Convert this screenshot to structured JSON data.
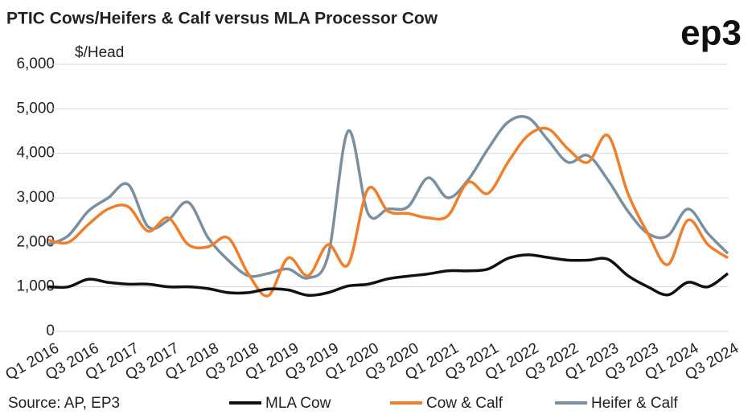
{
  "chart_data": {
    "type": "line",
    "title": "PTIC Cows/Heifers & Calf versus MLA Processor Cow",
    "brand": "ep3",
    "y_axis_label": "$/Head",
    "source": "Source: AP, EP3",
    "categories": [
      "Q1 2016",
      null,
      "Q3 2016",
      null,
      "Q1 2017",
      null,
      "Q3 2017",
      null,
      "Q1 2018",
      null,
      "Q3 2018",
      null,
      "Q1 2019",
      null,
      "Q3 2019",
      null,
      "Q1 2020",
      null,
      "Q3 2020",
      null,
      "Q1 2021",
      null,
      "Q3 2021",
      null,
      "Q1 2022",
      null,
      "Q3 2022",
      null,
      "Q1 2023",
      null,
      "Q3 2023",
      null,
      "Q1 2024",
      null,
      "Q3 2024"
    ],
    "series": [
      {
        "name": "MLA Cow",
        "color": "#111111",
        "values": [
          1000,
          1000,
          1170,
          1100,
          1060,
          1060,
          1000,
          1000,
          960,
          870,
          870,
          950,
          930,
          810,
          870,
          1020,
          1060,
          1180,
          1240,
          1290,
          1360,
          1360,
          1400,
          1640,
          1720,
          1660,
          1600,
          1600,
          1620,
          1250,
          1000,
          820,
          1100,
          1000,
          1300
        ]
      },
      {
        "name": "Cow & Calf",
        "color": "#f07f2b",
        "values": [
          2050,
          2000,
          2400,
          2750,
          2800,
          2250,
          2550,
          1950,
          1900,
          2100,
          1300,
          800,
          1650,
          1250,
          1950,
          1500,
          3200,
          2700,
          2650,
          2550,
          2600,
          3350,
          3100,
          3800,
          4400,
          4550,
          4100,
          3800,
          4400,
          3100,
          2200,
          1500,
          2500,
          1950,
          1650
        ]
      },
      {
        "name": "Heifer & Calf",
        "color": "#7a90a0",
        "values": [
          1950,
          2150,
          2700,
          3000,
          3300,
          2350,
          2500,
          2900,
          2100,
          1600,
          1250,
          1300,
          1400,
          1200,
          1700,
          4500,
          2650,
          2750,
          2800,
          3450,
          3000,
          3400,
          4100,
          4700,
          4800,
          4300,
          3800,
          3950,
          3400,
          2700,
          2200,
          2150,
          2750,
          2200,
          1750
        ]
      }
    ],
    "ylim": [
      0,
      6000
    ],
    "yticks": [
      0,
      {
        "value": 1000,
        "label": "1,000"
      },
      {
        "value": 2000,
        "label": "2,000"
      },
      {
        "value": 3000,
        "label": "3,000"
      },
      {
        "value": 4000,
        "label": "4,000"
      },
      {
        "value": 5000,
        "label": "5,000"
      },
      {
        "value": 6000,
        "label": "6,000"
      }
    ],
    "grid": true,
    "legend": "bottom"
  }
}
